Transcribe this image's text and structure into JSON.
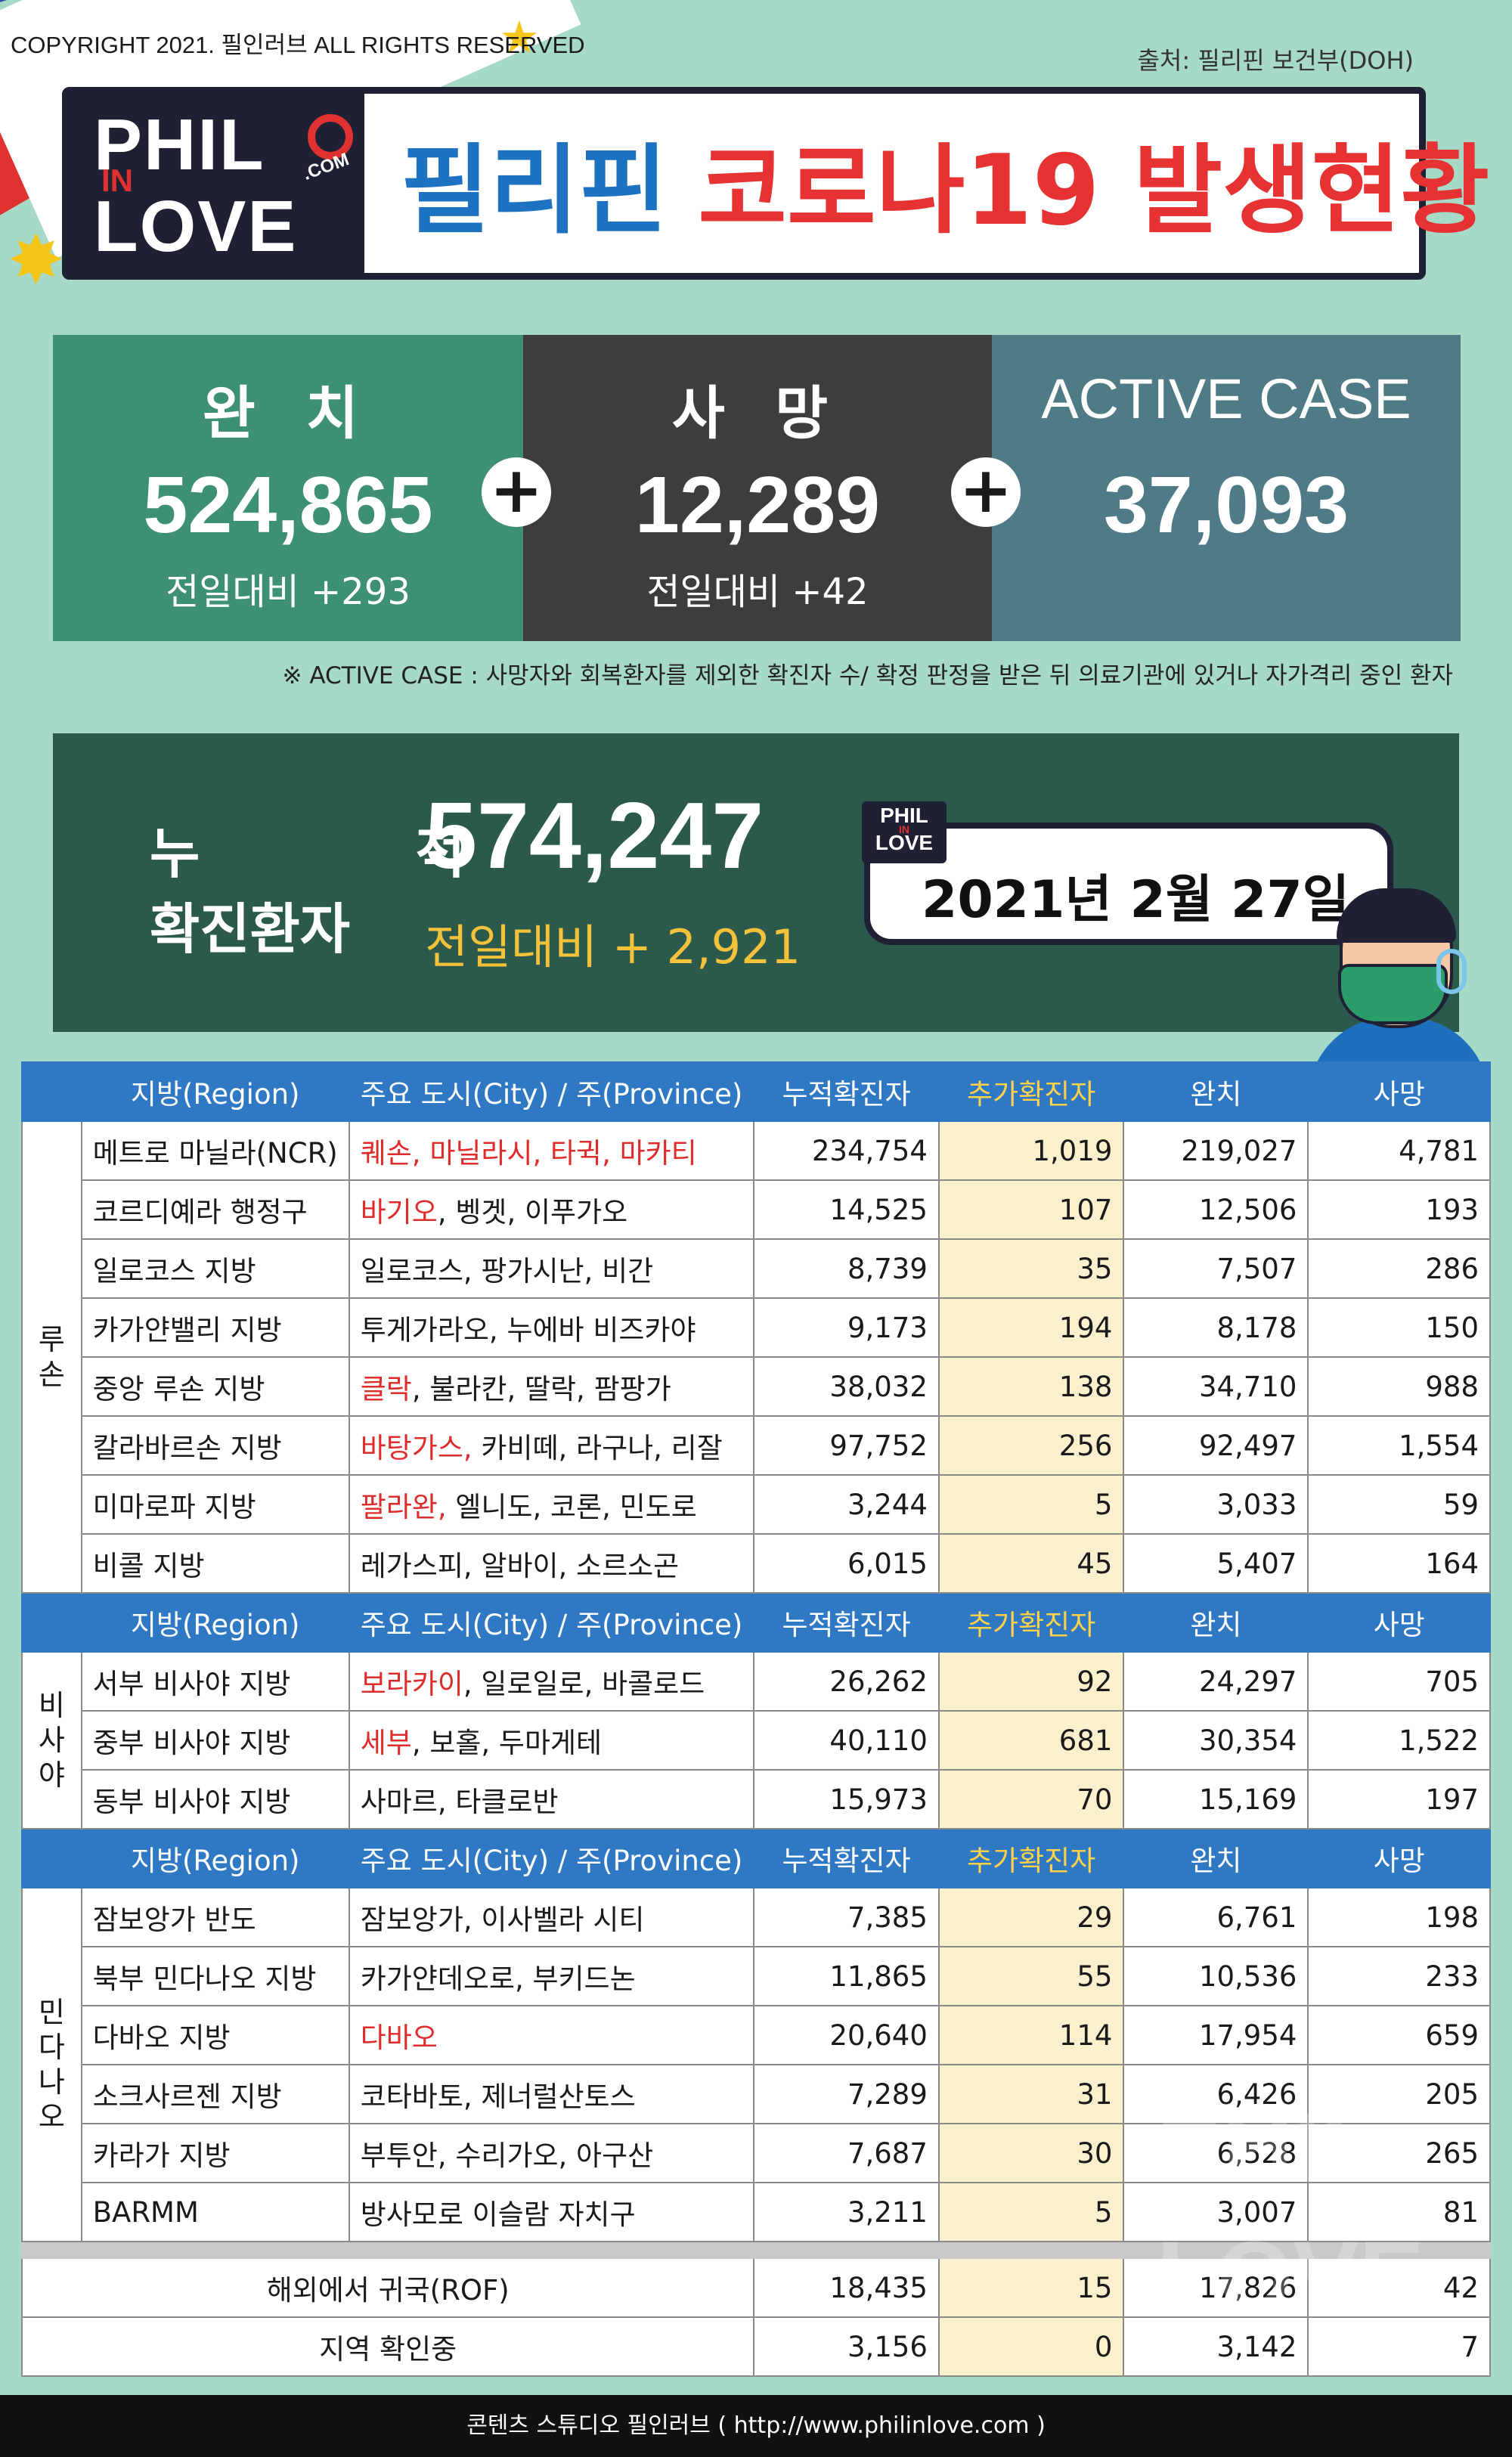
{
  "copyright": "COPYRIGHT 2021. 필인러브 ALL RIGHTS RESERVED",
  "source": "출처: 필리핀 보건부(DOH)",
  "logo": {
    "line1": "PHIL",
    "line2": "IN",
    "line3": "LOVE",
    "dotcom": ".COM"
  },
  "title": {
    "country": "필리핀",
    "subject": "코로나19 발생현황"
  },
  "stats": {
    "recovered": {
      "label": "완 치",
      "value": "524,865",
      "diff": "전일대비 +293"
    },
    "deaths": {
      "label": "사 망",
      "value": "12,289",
      "diff": "전일대비 +42"
    },
    "active": {
      "label": "ACTIVE CASE",
      "value": "37,093"
    },
    "plus_sign": "+"
  },
  "note": "※ ACTIVE CASE : 사망자와 회복환자를 제외한 확진자 수/ 확정 판정을 받은 뒤 의료기관에 있거나 자가격리 중인 환자",
  "cumulative": {
    "label1": "누 적",
    "label2": "확진환자",
    "value": "574,247",
    "diff": "전일대비 + 2,921"
  },
  "date": "2021년 2월 27일",
  "minilogo": {
    "line1": "PHIL",
    "line2": "IN",
    "line3": "LOVE"
  },
  "table": {
    "headers": {
      "region": "지방(Region)",
      "city": "주요 도시(City) / 주(Province)",
      "cumulative": "누적확진자",
      "added": "추가확진자",
      "recovered": "완치",
      "deaths": "사망"
    },
    "groups": [
      {
        "name": "루\n손",
        "rows": [
          {
            "region": "메트로 마닐라(NCR)",
            "city_hl": "퀘손, 마닐라시, 타귁, 마카티",
            "city": "",
            "cumulative": "234,754",
            "added": "1,019",
            "recovered": "219,027",
            "deaths": "4,781"
          },
          {
            "region": "코르디예라 행정구",
            "city_hl": "바기오",
            "city": ", 벵겟, 이푸가오",
            "cumulative": "14,525",
            "added": "107",
            "recovered": "12,506",
            "deaths": "193"
          },
          {
            "region": "일로코스 지방",
            "city_hl": "",
            "city": "일로코스, 팡가시난, 비간",
            "cumulative": "8,739",
            "added": "35",
            "recovered": "7,507",
            "deaths": "286"
          },
          {
            "region": "카가얀밸리 지방",
            "city_hl": "",
            "city": "투게가라오, 누에바 비즈카야",
            "cumulative": "9,173",
            "added": "194",
            "recovered": "8,178",
            "deaths": "150"
          },
          {
            "region": "중앙 루손 지방",
            "city_hl": "클락",
            "city": ", 불라칸, 딸락, 팜팡가",
            "cumulative": "38,032",
            "added": "138",
            "recovered": "34,710",
            "deaths": "988"
          },
          {
            "region": "칼라바르손 지방",
            "city_hl": "바탕가스,",
            "city": " 카비떼, 라구나, 리잘",
            "cumulative": "97,752",
            "added": "256",
            "recovered": "92,497",
            "deaths": "1,554"
          },
          {
            "region": "미마로파 지방",
            "city_hl": "팔라완,",
            "city": " 엘니도, 코론, 민도로",
            "cumulative": "3,244",
            "added": "5",
            "recovered": "3,033",
            "deaths": "59"
          },
          {
            "region": "비콜 지방",
            "city_hl": "",
            "city": "레가스피, 알바이, 소르소곤",
            "cumulative": "6,015",
            "added": "45",
            "recovered": "5,407",
            "deaths": "164"
          }
        ]
      },
      {
        "name": "비\n사\n야",
        "rows": [
          {
            "region": "서부 비사야 지방",
            "city_hl": "보라카이",
            "city": ", 일로일로, 바콜로드",
            "cumulative": "26,262",
            "added": "92",
            "recovered": "24,297",
            "deaths": "705"
          },
          {
            "region": "중부 비사야 지방",
            "city_hl": "세부",
            "city": ", 보홀, 두마게테",
            "cumulative": "40,110",
            "added": "681",
            "recovered": "30,354",
            "deaths": "1,522"
          },
          {
            "region": "동부 비사야 지방",
            "city_hl": "",
            "city": "사마르, 타클로반",
            "cumulative": "15,973",
            "added": "70",
            "recovered": "15,169",
            "deaths": "197"
          }
        ]
      },
      {
        "name": "민\n다\n나\n오",
        "rows": [
          {
            "region": "잠보앙가 반도",
            "city_hl": "",
            "city": "잠보앙가, 이사벨라 시티",
            "cumulative": "7,385",
            "added": "29",
            "recovered": "6,761",
            "deaths": "198"
          },
          {
            "region": "북부 민다나오 지방",
            "city_hl": "",
            "city": "카가얀데오로, 부키드논",
            "cumulative": "11,865",
            "added": "55",
            "recovered": "10,536",
            "deaths": "233"
          },
          {
            "region": "다바오 지방",
            "city_hl": "다바오",
            "city": "",
            "cumulative": "20,640",
            "added": "114",
            "recovered": "17,954",
            "deaths": "659"
          },
          {
            "region": "소크사르젠 지방",
            "city_hl": "",
            "city": "코타바토, 제너럴산토스",
            "cumulative": "7,289",
            "added": "31",
            "recovered": "6,426",
            "deaths": "205"
          },
          {
            "region": "카라가 지방",
            "city_hl": "",
            "city": "부투안, 수리가오, 아구산",
            "cumulative": "7,687",
            "added": "30",
            "recovered": "6,528",
            "deaths": "265"
          },
          {
            "region": "BARMM",
            "city_hl": "",
            "city": "방사모로 이슬람 자치구",
            "cumulative": "3,211",
            "added": "5",
            "recovered": "3,007",
            "deaths": "81"
          }
        ]
      }
    ],
    "footer_rows": [
      {
        "label": "해외에서 귀국(ROF)",
        "cumulative": "18,435",
        "added": "15",
        "recovered": "17,826",
        "deaths": "42"
      },
      {
        "label": "지역 확인중",
        "cumulative": "3,156",
        "added": "0",
        "recovered": "3,142",
        "deaths": "7"
      }
    ]
  },
  "watermark": {
    "line1": "PHIL",
    "line2": "IN",
    "line3": "LOVE"
  },
  "footer": "콘텐츠 스튜디오 필인러브 ( http://www.philinlove.com )",
  "colors": {
    "background": "#a6d9c6",
    "recovered": "#3d8f75",
    "deaths": "#3d3d3d",
    "active": "#4e7b85",
    "cumulative": "#2b5a4c",
    "table_header": "#2f78c4",
    "highlight": "#e02b2b",
    "added_col": "#fbf0cd"
  }
}
